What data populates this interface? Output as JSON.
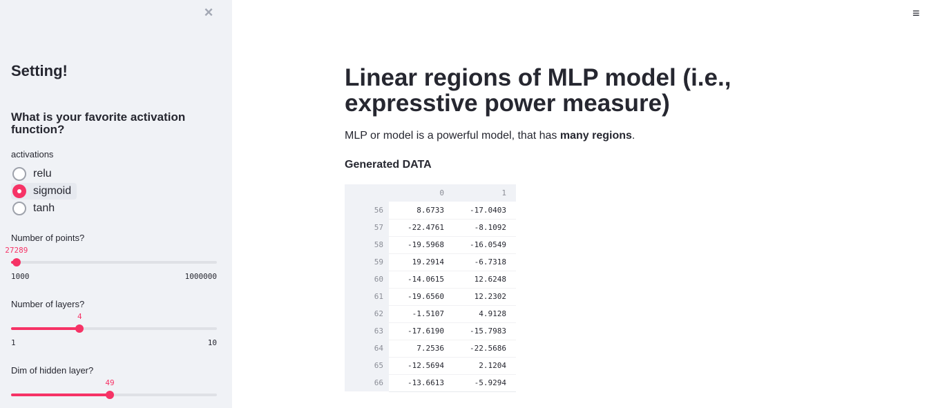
{
  "sidebar": {
    "close_icon": "close-icon",
    "title": "Setting!",
    "question": "What is your favorite activation function?",
    "radio": {
      "label": "activations",
      "options": [
        "relu",
        "sigmoid",
        "tanh"
      ],
      "selected": "sigmoid"
    },
    "sliders": [
      {
        "label": "Number of points?",
        "value": "27289",
        "min": "1000",
        "max": "1000000",
        "fraction": 0.0263
      },
      {
        "label": "Number of layers?",
        "value": "4",
        "min": "1",
        "max": "10",
        "fraction": 0.3333
      },
      {
        "label": "Dim of hidden layer?",
        "value": "49",
        "min": "",
        "max": "",
        "fraction": 0.48
      }
    ],
    "accent_color": "#f63366"
  },
  "main": {
    "menu_icon": "hamburger-menu-icon",
    "title": "Linear regions of MLP model (i.e., expresstive power measure)",
    "para_prefix": "MLP or model is a powerful model, that has ",
    "para_bold": "many regions",
    "para_suffix": ".",
    "subheader": "Generated DATA",
    "table": {
      "columns": [
        "0",
        "1"
      ],
      "rows": [
        {
          "index": "56",
          "c0": "8.6733",
          "c1": "-17.0403"
        },
        {
          "index": "57",
          "c0": "-22.4761",
          "c1": "-8.1092"
        },
        {
          "index": "58",
          "c0": "-19.5968",
          "c1": "-16.0549"
        },
        {
          "index": "59",
          "c0": "19.2914",
          "c1": "-6.7318"
        },
        {
          "index": "60",
          "c0": "-14.0615",
          "c1": "12.6248"
        },
        {
          "index": "61",
          "c0": "-19.6560",
          "c1": "12.2302"
        },
        {
          "index": "62",
          "c0": "-1.5107",
          "c1": "4.9128"
        },
        {
          "index": "63",
          "c0": "-17.6190",
          "c1": "-15.7983"
        },
        {
          "index": "64",
          "c0": "7.2536",
          "c1": "-22.5686"
        },
        {
          "index": "65",
          "c0": "-12.5694",
          "c1": "2.1204"
        },
        {
          "index": "66",
          "c0": "-13.6613",
          "c1": "-5.9294"
        }
      ]
    }
  }
}
